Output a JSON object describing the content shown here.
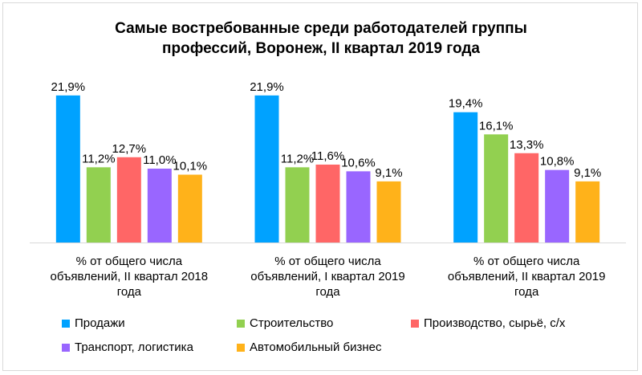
{
  "chart_data": {
    "type": "bar",
    "title_lines": [
      "Самые востребованные среди работодателей группы",
      "профессий, Воронеж, II квартал 2019 года"
    ],
    "groups": [
      {
        "label_lines": [
          "% от общего числа",
          "объявлений, II квартал 2018",
          "года"
        ]
      },
      {
        "label_lines": [
          "% от общего числа",
          "объявлений, I квартал 2019",
          "года"
        ]
      },
      {
        "label_lines": [
          "% от общего числа",
          "объявлений, II квартал 2019",
          "года"
        ]
      }
    ],
    "series": [
      {
        "name": "Продажи",
        "color": "#00a2ff",
        "values": [
          21.9,
          21.9,
          19.4
        ],
        "labels": [
          "21,9%",
          "21,9%",
          "19,4%"
        ]
      },
      {
        "name": "Строительство",
        "color": "#92d050",
        "values": [
          11.2,
          11.2,
          16.1
        ],
        "labels": [
          "11,2%",
          "11,2%",
          "16,1%"
        ]
      },
      {
        "name": "Производство, сырьё, с/х",
        "color": "#ff6666",
        "values": [
          12.7,
          11.6,
          13.3
        ],
        "labels": [
          "12,7%",
          "11,6%",
          "13,3%"
        ]
      },
      {
        "name": "Транспорт, логистика",
        "color": "#9966ff",
        "values": [
          11.0,
          10.6,
          10.8
        ],
        "labels": [
          "11,0%",
          "10,6%",
          "10,8%"
        ]
      },
      {
        "name": "Автомобильный бизнес",
        "color": "#ffb21a",
        "values": [
          10.1,
          9.1,
          9.1
        ],
        "labels": [
          "10,1%",
          "9,1%",
          "9,1%"
        ]
      }
    ],
    "ylim": [
      0,
      22
    ],
    "grid": false,
    "legend_position": "bottom"
  }
}
